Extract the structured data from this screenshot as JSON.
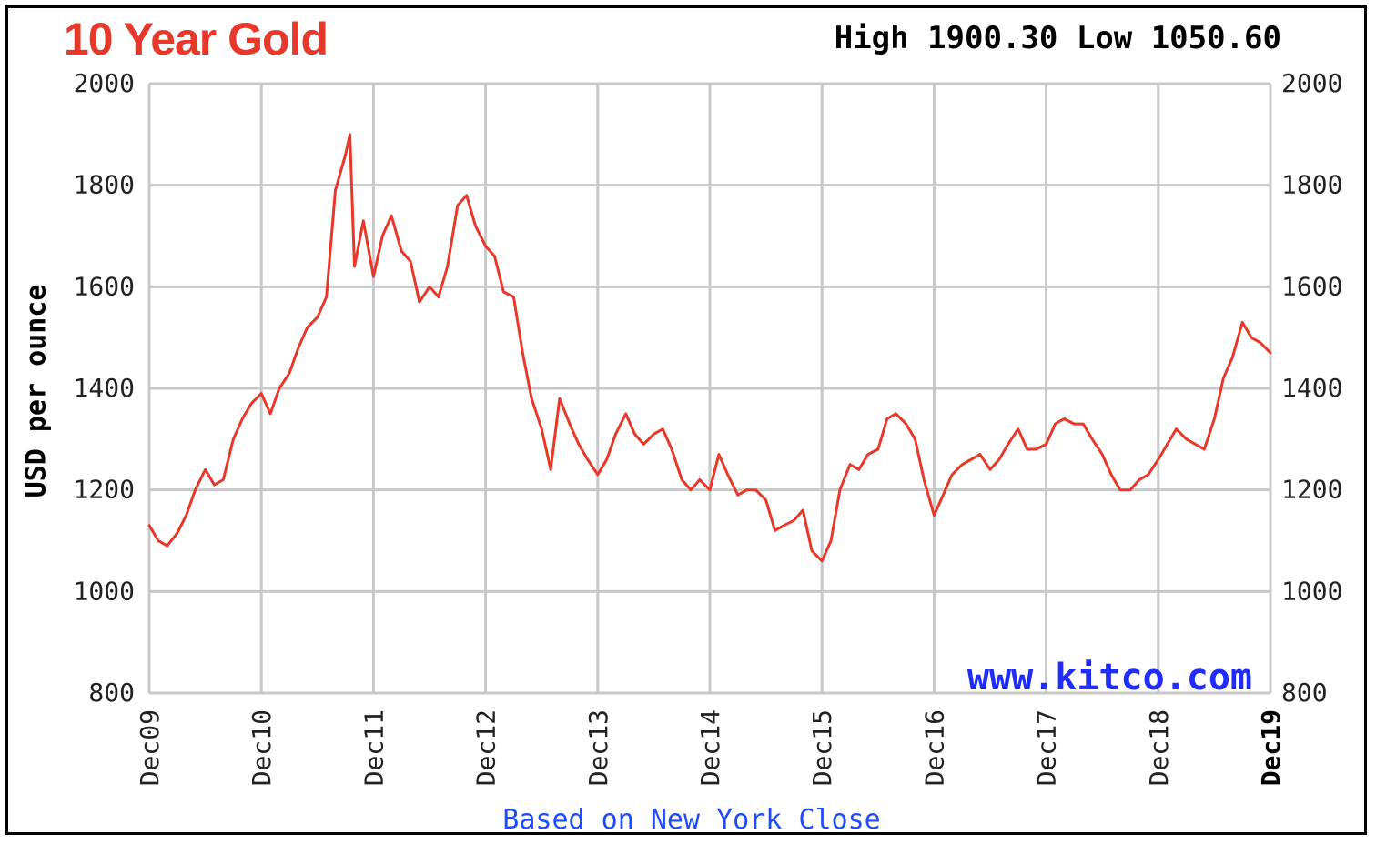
{
  "header": {
    "title": "10 Year Gold",
    "stats": "High 1900.30 Low 1050.60"
  },
  "footer": {
    "source": "Based on New York Close"
  },
  "watermark": "www.kitco.com",
  "colors": {
    "title": "#e8382a",
    "line": "#e8382a",
    "grid": "#c8c8c8",
    "source": "#1f4bff",
    "watermark": "#1f2bff"
  },
  "chart_data": {
    "type": "line",
    "title": "10 Year Gold",
    "ylabel": "USD per ounce",
    "xlabel": "",
    "ylim": [
      800,
      2000
    ],
    "yticks": [
      800,
      1000,
      1200,
      1400,
      1600,
      1800,
      2000
    ],
    "ytick_labels": [
      "800",
      "1000",
      "1200",
      "1400",
      "1600",
      "1800",
      "2000"
    ],
    "xlim": [
      2009.92,
      2019.92
    ],
    "xticks": [
      2009.92,
      2010.92,
      2011.92,
      2012.92,
      2013.92,
      2014.92,
      2015.92,
      2016.92,
      2017.92,
      2018.92,
      2019.92
    ],
    "xtick_labels": [
      "Dec09",
      "Dec10",
      "Dec11",
      "Dec12",
      "Dec13",
      "Dec14",
      "Dec15",
      "Dec16",
      "Dec17",
      "Dec18",
      "Dec19"
    ],
    "grid": true,
    "y_axis_both_sides": true,
    "high": 1900.3,
    "low": 1050.6,
    "series": [
      {
        "color": "#e8382a",
        "x": [
          2009.92,
          2010.0,
          2010.08,
          2010.17,
          2010.25,
          2010.33,
          2010.42,
          2010.5,
          2010.58,
          2010.67,
          2010.75,
          2010.83,
          2010.92,
          2011.0,
          2011.08,
          2011.17,
          2011.25,
          2011.33,
          2011.42,
          2011.5,
          2011.58,
          2011.67,
          2011.71,
          2011.75,
          2011.83,
          2011.92,
          2012.0,
          2012.08,
          2012.17,
          2012.25,
          2012.33,
          2012.42,
          2012.5,
          2012.58,
          2012.67,
          2012.75,
          2012.83,
          2012.92,
          2013.0,
          2013.08,
          2013.17,
          2013.25,
          2013.33,
          2013.42,
          2013.5,
          2013.58,
          2013.67,
          2013.75,
          2013.83,
          2013.92,
          2014.0,
          2014.08,
          2014.17,
          2014.25,
          2014.33,
          2014.42,
          2014.5,
          2014.58,
          2014.67,
          2014.75,
          2014.83,
          2014.92,
          2015.0,
          2015.08,
          2015.17,
          2015.25,
          2015.33,
          2015.42,
          2015.5,
          2015.58,
          2015.67,
          2015.75,
          2015.83,
          2015.92,
          2016.0,
          2016.08,
          2016.17,
          2016.25,
          2016.33,
          2016.42,
          2016.5,
          2016.58,
          2016.67,
          2016.75,
          2016.83,
          2016.92,
          2017.0,
          2017.08,
          2017.17,
          2017.25,
          2017.33,
          2017.42,
          2017.5,
          2017.58,
          2017.67,
          2017.75,
          2017.83,
          2017.92,
          2018.0,
          2018.08,
          2018.17,
          2018.25,
          2018.33,
          2018.42,
          2018.5,
          2018.58,
          2018.67,
          2018.75,
          2018.83,
          2018.92,
          2019.0,
          2019.08,
          2019.17,
          2019.25,
          2019.33,
          2019.42,
          2019.5,
          2019.58,
          2019.67,
          2019.75,
          2019.83,
          2019.92
        ],
        "y": [
          1130,
          1100,
          1090,
          1115,
          1150,
          1200,
          1240,
          1210,
          1220,
          1300,
          1340,
          1370,
          1390,
          1350,
          1400,
          1430,
          1480,
          1520,
          1540,
          1580,
          1790,
          1860,
          1900,
          1640,
          1730,
          1620,
          1700,
          1740,
          1670,
          1650,
          1570,
          1600,
          1580,
          1640,
          1760,
          1780,
          1720,
          1680,
          1660,
          1590,
          1580,
          1470,
          1380,
          1320,
          1240,
          1380,
          1330,
          1290,
          1260,
          1230,
          1260,
          1310,
          1350,
          1310,
          1290,
          1310,
          1320,
          1280,
          1220,
          1200,
          1220,
          1200,
          1270,
          1230,
          1190,
          1200,
          1200,
          1180,
          1120,
          1130,
          1140,
          1160,
          1080,
          1060,
          1100,
          1200,
          1250,
          1240,
          1270,
          1280,
          1340,
          1350,
          1330,
          1300,
          1220,
          1150,
          1190,
          1230,
          1250,
          1260,
          1270,
          1240,
          1260,
          1290,
          1320,
          1280,
          1280,
          1290,
          1330,
          1340,
          1330,
          1330,
          1300,
          1270,
          1230,
          1200,
          1200,
          1220,
          1230,
          1260,
          1290,
          1320,
          1300,
          1290,
          1280,
          1340,
          1420,
          1460,
          1530,
          1500,
          1490,
          1470
        ]
      }
    ]
  }
}
